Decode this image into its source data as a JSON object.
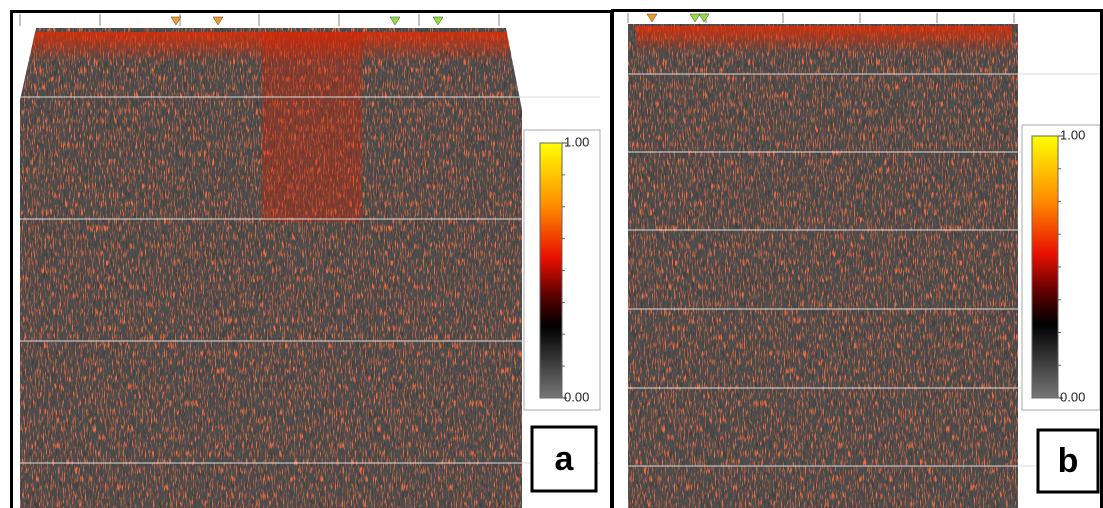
{
  "panels": [
    {
      "label": "a",
      "colorbar_ticks": [
        {
          "value": 0,
          "label": "0.00"
        },
        {
          "value": 1,
          "label": "1.00"
        }
      ]
    },
    {
      "label": "b",
      "colorbar_ticks": [
        {
          "value": 0,
          "label": "0.00"
        },
        {
          "value": 1,
          "label": "1.00"
        }
      ]
    }
  ]
}
